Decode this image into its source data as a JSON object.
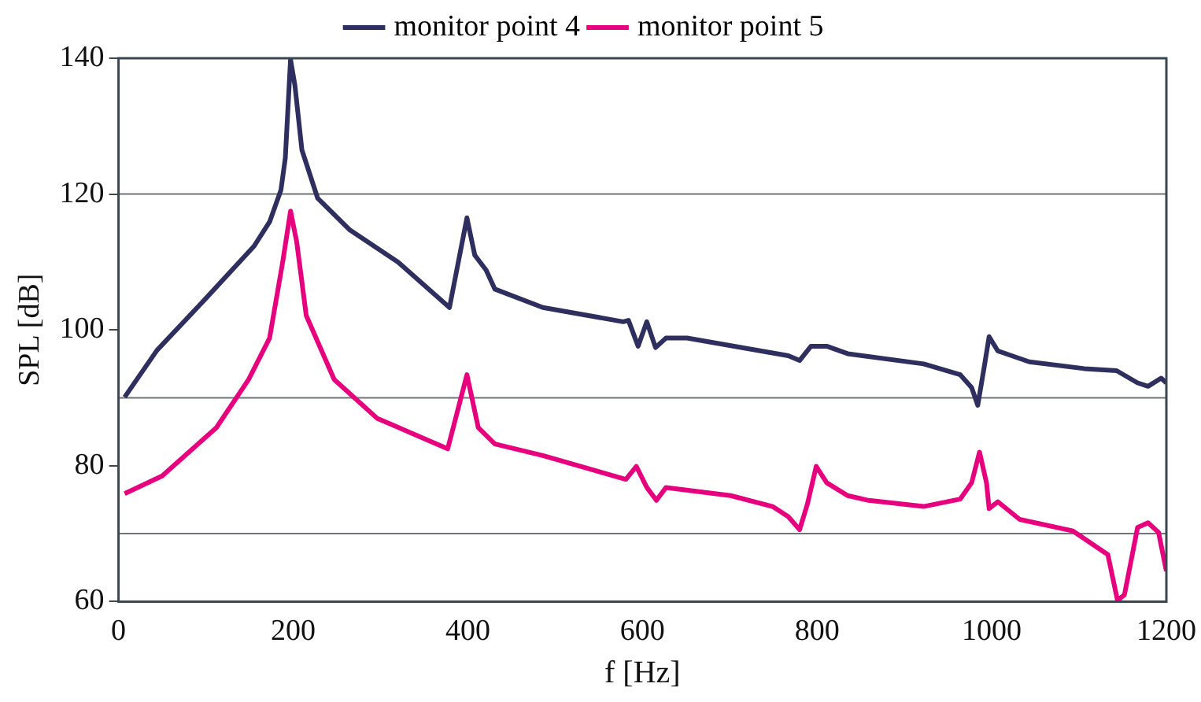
{
  "chart_data": {
    "type": "line",
    "xlabel": "f [Hz]",
    "ylabel": "SPL [dB]",
    "xlim": [
      0,
      1200
    ],
    "xticks": [
      0,
      200,
      400,
      600,
      800,
      1000,
      1200
    ],
    "ylim": [
      60,
      140
    ],
    "yticks": [
      60,
      80,
      100,
      120,
      140
    ],
    "grid": false,
    "legend": "top",
    "marker": "none",
    "line_style": "solid",
    "ref_lines": [
      {
        "axis": "y",
        "value": 120,
        "color": "#6e7478"
      },
      {
        "axis": "y",
        "value": 90,
        "color": "#6e7478"
      },
      {
        "axis": "y",
        "value": 70,
        "color": "#6e7478"
      }
    ],
    "series": [
      {
        "name": "monitor point 4",
        "color": "#2e2f5e",
        "x": [
          7,
          44,
          99,
          155,
          173,
          186,
          191,
          197,
          202,
          210,
          228,
          265,
          320,
          379,
          399,
          408,
          421,
          431,
          486,
          578,
          584,
          595,
          605,
          615,
          627,
          651,
          767,
          780,
          793,
          811,
          835,
          922,
          964,
          977,
          984,
          992,
          997,
          1007,
          1043,
          1106,
          1143,
          1167,
          1179,
          1194,
          1200
        ],
        "values": [
          90.1,
          97,
          104.5,
          112.3,
          115.9,
          120.6,
          125.3,
          139.8,
          136,
          126.5,
          119.4,
          114.7,
          110,
          103.3,
          116.5,
          111,
          108.8,
          106,
          103.3,
          101.2,
          101.4,
          97.6,
          101.2,
          97.4,
          98.8,
          98.8,
          96.2,
          95.5,
          97.6,
          97.6,
          96.5,
          95,
          93.4,
          91.5,
          88.9,
          95,
          99,
          96.9,
          95.3,
          94.3,
          94,
          92.2,
          91.7,
          92.9,
          92.2
        ]
      },
      {
        "name": "monitor point 5",
        "color": "#e6007e",
        "x": [
          7,
          50,
          112,
          149,
          173,
          188,
          197,
          204,
          215,
          247,
          296,
          377,
          399,
          412,
          431,
          486,
          581,
          593,
          605,
          616,
          627,
          701,
          749,
          767,
          780,
          789,
          799,
          811,
          835,
          859,
          922,
          964,
          977,
          986,
          994,
          997,
          1007,
          1032,
          1093,
          1133,
          1144,
          1152,
          1167,
          1179,
          1191,
          1200
        ],
        "values": [
          75.9,
          78.5,
          85.6,
          92.7,
          98.8,
          110,
          117.5,
          113,
          102.1,
          92.7,
          87,
          82.5,
          93.4,
          85.6,
          83.2,
          81.5,
          78,
          79.9,
          76.8,
          74.9,
          76.8,
          75.6,
          74,
          72.5,
          70.6,
          74.4,
          79.9,
          77.5,
          75.6,
          74.9,
          74,
          75.1,
          77.5,
          82,
          77.5,
          73.7,
          74.7,
          72.1,
          70.4,
          66.9,
          60.2,
          61,
          70.9,
          71.6,
          70.2,
          64.5
        ]
      }
    ]
  }
}
